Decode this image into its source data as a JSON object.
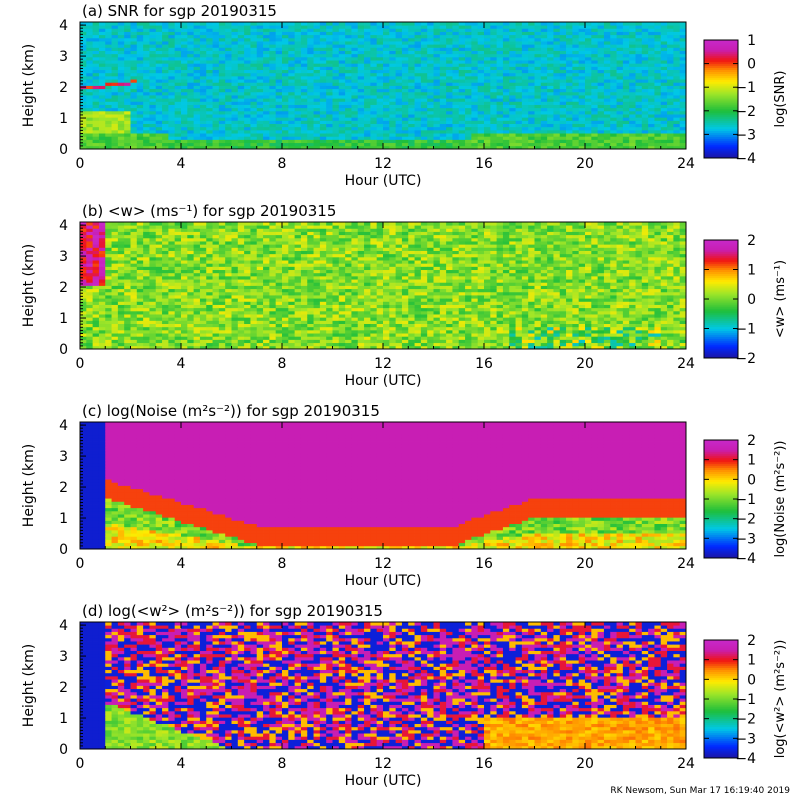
{
  "chart_data": [
    {
      "type": "heatmap",
      "panel": "a",
      "title": "(a) SNR for sgp 20190315",
      "xlabel": "Hour (UTC)",
      "ylabel": "Height (km)",
      "colorbar_label": "log(SNR)",
      "xlim": [
        0,
        24
      ],
      "ylim": [
        0,
        4.1
      ],
      "xticks": [
        0,
        4,
        8,
        12,
        16,
        20,
        24
      ],
      "yticks": [
        0,
        1,
        2,
        3,
        4
      ],
      "clim": [
        -4,
        1
      ],
      "cticks": [
        -4,
        -3,
        -2,
        -1,
        0,
        1
      ]
    },
    {
      "type": "heatmap",
      "panel": "b",
      "title": "(b) <w> (ms⁻¹) for sgp 20190315",
      "xlabel": "Hour (UTC)",
      "ylabel": "Height (km)",
      "colorbar_label": "<w> (ms⁻¹)",
      "xlim": [
        0,
        24
      ],
      "ylim": [
        0,
        4.1
      ],
      "xticks": [
        0,
        4,
        8,
        12,
        16,
        20,
        24
      ],
      "yticks": [
        0,
        1,
        2,
        3,
        4
      ],
      "clim": [
        -2,
        2
      ],
      "cticks": [
        -2,
        -1,
        0,
        1,
        2
      ]
    },
    {
      "type": "heatmap",
      "panel": "c",
      "title": "(c) log(Noise (m²s⁻²)) for sgp 20190315",
      "xlabel": "Hour (UTC)",
      "ylabel": "Height (km)",
      "colorbar_label": "log(Noise (m²s⁻²))",
      "xlim": [
        0,
        24
      ],
      "ylim": [
        0,
        4.1
      ],
      "xticks": [
        0,
        4,
        8,
        12,
        16,
        20,
        24
      ],
      "yticks": [
        0,
        1,
        2,
        3,
        4
      ],
      "clim": [
        -4,
        2
      ],
      "cticks": [
        -4,
        -3,
        -2,
        -1,
        0,
        1,
        2
      ]
    },
    {
      "type": "heatmap",
      "panel": "d",
      "title": "(d) log(<w²> (m²s⁻²)) for sgp 20190315",
      "xlabel": "Hour (UTC)",
      "ylabel": "Height (km)",
      "colorbar_label": "log(<w²> (m²s⁻²))",
      "xlim": [
        0,
        24
      ],
      "ylim": [
        0,
        4.1
      ],
      "xticks": [
        0,
        4,
        8,
        12,
        16,
        20,
        24
      ],
      "yticks": [
        0,
        1,
        2,
        3,
        4
      ],
      "clim": [
        -4,
        2
      ],
      "cticks": [
        -4,
        -3,
        -2,
        -1,
        0,
        1,
        2
      ]
    }
  ],
  "footer": "RK Newsom, Sun Mar 17 16:19:40 2019"
}
